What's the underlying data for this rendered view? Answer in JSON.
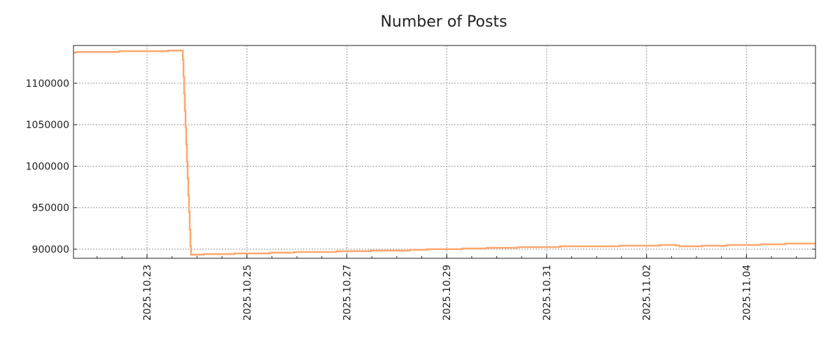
{
  "chart_data": {
    "type": "line",
    "title": "Number of Posts",
    "xlabel": "",
    "ylabel": "",
    "step": true,
    "color": "#FFA76F",
    "grid": true,
    "xlim": [
      "2025-10-21T12:40",
      "2025-11-05T09:10"
    ],
    "ylim": [
      889000,
      1145500
    ],
    "yticks": [
      900000,
      950000,
      1000000,
      1050000,
      1100000
    ],
    "ytick_labels": [
      "900000",
      "950000",
      "1000000",
      "1050000",
      "1100000"
    ],
    "xticks": [
      "2025-10-23",
      "2025-10-25",
      "2025-10-27",
      "2025-10-29",
      "2025-10-31",
      "2025-11-02",
      "2025-11-04"
    ],
    "xtick_labels": [
      "2025.10.23",
      "2025.10.25",
      "2025.10.27",
      "2025.10.29",
      "2025.10.31",
      "2025.11.02",
      "2025.11.04"
    ],
    "series": [
      {
        "name": "Number of Posts",
        "x": [
          "2025-10-21T12:40",
          "2025-10-21T14:00",
          "2025-10-22T10:30",
          "2025-10-23T10:00",
          "2025-10-23T17:10",
          "2025-10-23T17:30",
          "2025-10-23T17:50",
          "2025-10-23T18:10",
          "2025-10-23T18:30",
          "2025-10-23T18:50",
          "2025-10-23T19:10",
          "2025-10-23T19:30",
          "2025-10-23T19:50",
          "2025-10-23T20:10",
          "2025-10-23T20:30",
          "2025-10-23T20:50",
          "2025-10-23T21:10",
          "2025-10-24T03:00",
          "2025-10-24T18:00",
          "2025-10-25T11:00",
          "2025-10-25T22:40",
          "2025-10-26T19:00",
          "2025-10-27T11:40",
          "2025-10-28T06:10",
          "2025-10-28T14:30",
          "2025-10-29T07:20",
          "2025-10-29T19:10",
          "2025-10-30T10:20",
          "2025-10-31T06:30",
          "2025-11-01T11:00",
          "2025-11-02T06:30",
          "2025-11-02T14:00",
          "2025-11-02T15:40",
          "2025-11-03T02:40",
          "2025-11-03T14:30",
          "2025-11-04T07:00",
          "2025-11-04T18:30",
          "2025-11-05T09:10"
        ],
        "y": [
          1136900,
          1137700,
          1138600,
          1139400,
          1128500,
          1108200,
          1087100,
          1066900,
          1046700,
          1026400,
          1005400,
          985100,
          964900,
          944700,
          923600,
          903400,
          893300,
          894100,
          894900,
          895800,
          896600,
          897500,
          898300,
          899200,
          900000,
          900800,
          901700,
          902500,
          903400,
          904200,
          905000,
          904500,
          903400,
          904200,
          905000,
          905900,
          906700,
          906700
        ]
      }
    ]
  }
}
